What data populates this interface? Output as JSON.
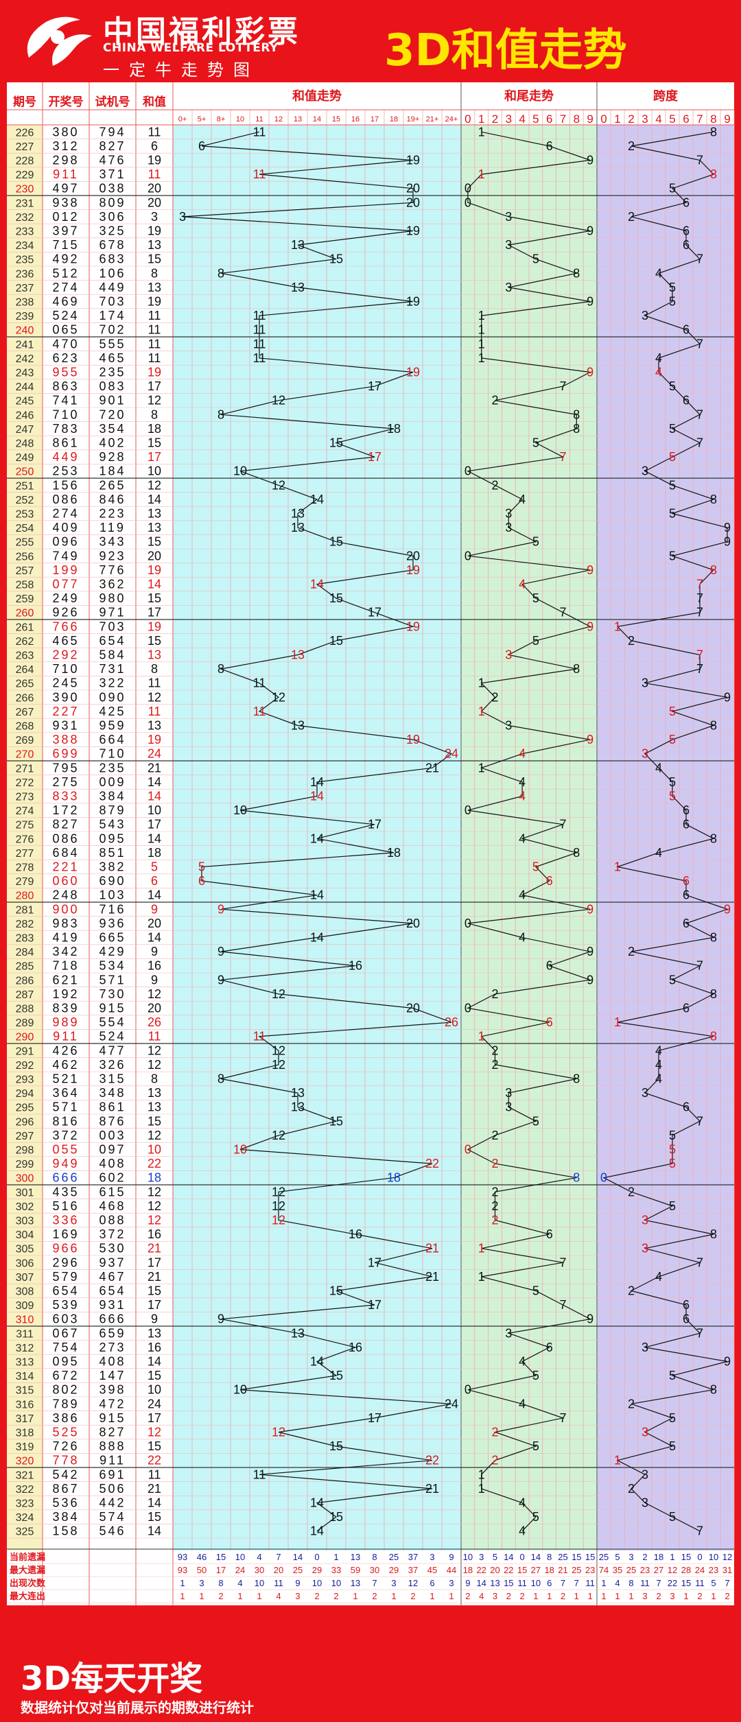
{
  "header": {
    "logo_cn": "中国福利彩票",
    "logo_en": "CHINA WELFARE LOTTERY",
    "slogan": "一定牛走势图",
    "title": "3D和值走势"
  },
  "columns": {
    "period": "期号",
    "draw": "开奖号",
    "test": "试机号",
    "sum": "和值",
    "sum_trend": "和值走势",
    "tail_trend": "和尾走势",
    "span": "跨度"
  },
  "sum_ticks": [
    "0+",
    "5+",
    "8+",
    "10",
    "11",
    "12",
    "13",
    "14",
    "15",
    "16",
    "17",
    "18",
    "19+",
    "21+",
    "24+"
  ],
  "tail_ticks": [
    "0",
    "1",
    "2",
    "3",
    "4",
    "5",
    "6",
    "7",
    "8",
    "9"
  ],
  "span_ticks": [
    "0",
    "1",
    "2",
    "3",
    "4",
    "5",
    "6",
    "7",
    "8",
    "9"
  ],
  "colors": {
    "background": "#e8141a",
    "title": "#ffe600",
    "sum_zone": "#c6f6f8",
    "tail_zone": "#d2f2d6",
    "span_zone": "#cfc9f2",
    "period_zone": "#f8f1c2",
    "red_text": "#e0161b",
    "blue_text": "#1a3cc8",
    "line": "#111111"
  },
  "chart_data": {
    "type": "line",
    "title": "3D和值走势",
    "rows": [
      {
        "p": "226",
        "d": "380",
        "t": "794",
        "s": 11
      },
      {
        "p": "227",
        "d": "312",
        "t": "827",
        "s": 6
      },
      {
        "p": "228",
        "d": "298",
        "t": "476",
        "s": 19
      },
      {
        "p": "229",
        "d": "911",
        "t": "371",
        "s": 11
      },
      {
        "p": "230",
        "d": "497",
        "t": "038",
        "s": 20
      },
      {
        "p": "231",
        "d": "938",
        "t": "809",
        "s": 20
      },
      {
        "p": "232",
        "d": "012",
        "t": "306",
        "s": 3
      },
      {
        "p": "233",
        "d": "397",
        "t": "325",
        "s": 19
      },
      {
        "p": "234",
        "d": "715",
        "t": "678",
        "s": 13
      },
      {
        "p": "235",
        "d": "492",
        "t": "683",
        "s": 15
      },
      {
        "p": "236",
        "d": "512",
        "t": "106",
        "s": 8
      },
      {
        "p": "237",
        "d": "274",
        "t": "449",
        "s": 13
      },
      {
        "p": "238",
        "d": "469",
        "t": "703",
        "s": 19
      },
      {
        "p": "239",
        "d": "524",
        "t": "174",
        "s": 11
      },
      {
        "p": "240",
        "d": "065",
        "t": "702",
        "s": 11
      },
      {
        "p": "241",
        "d": "470",
        "t": "555",
        "s": 11
      },
      {
        "p": "242",
        "d": "623",
        "t": "465",
        "s": 11
      },
      {
        "p": "243",
        "d": "955",
        "t": "235",
        "s": 19
      },
      {
        "p": "244",
        "d": "863",
        "t": "083",
        "s": 17
      },
      {
        "p": "245",
        "d": "741",
        "t": "901",
        "s": 12
      },
      {
        "p": "246",
        "d": "710",
        "t": "720",
        "s": 8
      },
      {
        "p": "247",
        "d": "783",
        "t": "354",
        "s": 18
      },
      {
        "p": "248",
        "d": "861",
        "t": "402",
        "s": 15
      },
      {
        "p": "249",
        "d": "449",
        "t": "928",
        "s": 17
      },
      {
        "p": "250",
        "d": "253",
        "t": "184",
        "s": 10
      },
      {
        "p": "251",
        "d": "156",
        "t": "265",
        "s": 12
      },
      {
        "p": "252",
        "d": "086",
        "t": "846",
        "s": 14
      },
      {
        "p": "253",
        "d": "274",
        "t": "223",
        "s": 13
      },
      {
        "p": "254",
        "d": "409",
        "t": "119",
        "s": 13
      },
      {
        "p": "255",
        "d": "096",
        "t": "343",
        "s": 15
      },
      {
        "p": "256",
        "d": "749",
        "t": "923",
        "s": 20
      },
      {
        "p": "257",
        "d": "199",
        "t": "776",
        "s": 19
      },
      {
        "p": "258",
        "d": "077",
        "t": "362",
        "s": 14
      },
      {
        "p": "259",
        "d": "249",
        "t": "980",
        "s": 15
      },
      {
        "p": "260",
        "d": "926",
        "t": "971",
        "s": 17
      },
      {
        "p": "261",
        "d": "766",
        "t": "703",
        "s": 19
      },
      {
        "p": "262",
        "d": "465",
        "t": "654",
        "s": 15
      },
      {
        "p": "263",
        "d": "292",
        "t": "584",
        "s": 13
      },
      {
        "p": "264",
        "d": "710",
        "t": "731",
        "s": 8
      },
      {
        "p": "265",
        "d": "245",
        "t": "322",
        "s": 11
      },
      {
        "p": "266",
        "d": "390",
        "t": "090",
        "s": 12
      },
      {
        "p": "267",
        "d": "227",
        "t": "425",
        "s": 11
      },
      {
        "p": "268",
        "d": "931",
        "t": "959",
        "s": 13
      },
      {
        "p": "269",
        "d": "388",
        "t": "664",
        "s": 19
      },
      {
        "p": "270",
        "d": "699",
        "t": "710",
        "s": 24
      },
      {
        "p": "271",
        "d": "795",
        "t": "235",
        "s": 21
      },
      {
        "p": "272",
        "d": "275",
        "t": "009",
        "s": 14
      },
      {
        "p": "273",
        "d": "833",
        "t": "384",
        "s": 14
      },
      {
        "p": "274",
        "d": "172",
        "t": "879",
        "s": 10
      },
      {
        "p": "275",
        "d": "827",
        "t": "543",
        "s": 17
      },
      {
        "p": "276",
        "d": "086",
        "t": "095",
        "s": 14
      },
      {
        "p": "277",
        "d": "684",
        "t": "851",
        "s": 18
      },
      {
        "p": "278",
        "d": "221",
        "t": "382",
        "s": 5
      },
      {
        "p": "279",
        "d": "060",
        "t": "690",
        "s": 6
      },
      {
        "p": "280",
        "d": "248",
        "t": "103",
        "s": 14
      },
      {
        "p": "281",
        "d": "900",
        "t": "716",
        "s": 9
      },
      {
        "p": "282",
        "d": "983",
        "t": "936",
        "s": 20
      },
      {
        "p": "283",
        "d": "419",
        "t": "665",
        "s": 14
      },
      {
        "p": "284",
        "d": "342",
        "t": "429",
        "s": 9
      },
      {
        "p": "285",
        "d": "718",
        "t": "534",
        "s": 16
      },
      {
        "p": "286",
        "d": "621",
        "t": "571",
        "s": 9
      },
      {
        "p": "287",
        "d": "192",
        "t": "730",
        "s": 12
      },
      {
        "p": "288",
        "d": "839",
        "t": "915",
        "s": 20
      },
      {
        "p": "289",
        "d": "989",
        "t": "554",
        "s": 26
      },
      {
        "p": "290",
        "d": "911",
        "t": "524",
        "s": 11
      },
      {
        "p": "291",
        "d": "426",
        "t": "477",
        "s": 12
      },
      {
        "p": "292",
        "d": "462",
        "t": "326",
        "s": 12
      },
      {
        "p": "293",
        "d": "521",
        "t": "315",
        "s": 8
      },
      {
        "p": "294",
        "d": "364",
        "t": "348",
        "s": 13
      },
      {
        "p": "295",
        "d": "571",
        "t": "861",
        "s": 13
      },
      {
        "p": "296",
        "d": "816",
        "t": "876",
        "s": 15
      },
      {
        "p": "297",
        "d": "372",
        "t": "003",
        "s": 12
      },
      {
        "p": "298",
        "d": "055",
        "t": "097",
        "s": 10
      },
      {
        "p": "299",
        "d": "949",
        "t": "408",
        "s": 22
      },
      {
        "p": "300",
        "d": "666",
        "t": "602",
        "s": 18
      },
      {
        "p": "301",
        "d": "435",
        "t": "615",
        "s": 12
      },
      {
        "p": "302",
        "d": "516",
        "t": "468",
        "s": 12
      },
      {
        "p": "303",
        "d": "336",
        "t": "088",
        "s": 12
      },
      {
        "p": "304",
        "d": "169",
        "t": "372",
        "s": 16
      },
      {
        "p": "305",
        "d": "966",
        "t": "530",
        "s": 21
      },
      {
        "p": "306",
        "d": "296",
        "t": "937",
        "s": 17
      },
      {
        "p": "307",
        "d": "579",
        "t": "467",
        "s": 21
      },
      {
        "p": "308",
        "d": "654",
        "t": "654",
        "s": 15
      },
      {
        "p": "309",
        "d": "539",
        "t": "931",
        "s": 17
      },
      {
        "p": "310",
        "d": "603",
        "t": "666",
        "s": 9
      },
      {
        "p": "311",
        "d": "067",
        "t": "659",
        "s": 13
      },
      {
        "p": "312",
        "d": "754",
        "t": "273",
        "s": 16
      },
      {
        "p": "313",
        "d": "095",
        "t": "408",
        "s": 14
      },
      {
        "p": "314",
        "d": "672",
        "t": "147",
        "s": 15
      },
      {
        "p": "315",
        "d": "802",
        "t": "398",
        "s": 10
      },
      {
        "p": "316",
        "d": "789",
        "t": "472",
        "s": 24
      },
      {
        "p": "317",
        "d": "386",
        "t": "915",
        "s": 17
      },
      {
        "p": "318",
        "d": "525",
        "t": "827",
        "s": 12
      },
      {
        "p": "319",
        "d": "726",
        "t": "888",
        "s": 15
      },
      {
        "p": "320",
        "d": "778",
        "t": "911",
        "s": 22
      },
      {
        "p": "321",
        "d": "542",
        "t": "691",
        "s": 11
      },
      {
        "p": "322",
        "d": "867",
        "t": "506",
        "s": 21
      },
      {
        "p": "323",
        "d": "536",
        "t": "442",
        "s": 14
      },
      {
        "p": "324",
        "d": "384",
        "t": "574",
        "s": 15
      },
      {
        "p": "325",
        "d": "158",
        "t": "546",
        "s": 14
      }
    ],
    "stat_labels": [
      "当前遗漏",
      "最大遗漏",
      "出现次数",
      "最大连出"
    ],
    "stats_sum": [
      [
        "93",
        "46",
        "15",
        "10",
        "4",
        "7",
        "14",
        "0",
        "1",
        "13",
        "8",
        "25",
        "37",
        "3",
        "9"
      ],
      [
        "93",
        "50",
        "17",
        "24",
        "30",
        "20",
        "25",
        "29",
        "33",
        "59",
        "30",
        "29",
        "37",
        "45",
        "44"
      ],
      [
        "1",
        "3",
        "8",
        "4",
        "10",
        "11",
        "9",
        "10",
        "10",
        "13",
        "7",
        "3",
        "12",
        "6",
        "3"
      ],
      [
        "1",
        "1",
        "2",
        "1",
        "1",
        "4",
        "3",
        "2",
        "2",
        "1",
        "2",
        "1",
        "2",
        "1",
        "1"
      ]
    ],
    "stats_tail": [
      [
        "10",
        "3",
        "5",
        "14",
        "0",
        "14",
        "8",
        "25",
        "15",
        "15"
      ],
      [
        "18",
        "22",
        "20",
        "22",
        "15",
        "27",
        "18",
        "21",
        "25",
        "23"
      ],
      [
        "9",
        "14",
        "13",
        "15",
        "11",
        "10",
        "6",
        "7",
        "7",
        "11"
      ],
      [
        "2",
        "4",
        "3",
        "2",
        "2",
        "1",
        "1",
        "2",
        "1",
        "1"
      ]
    ],
    "stats_span": [
      [
        "25",
        "5",
        "3",
        "2",
        "18",
        "1",
        "15",
        "0",
        "10",
        "12"
      ],
      [
        "74",
        "35",
        "25",
        "23",
        "27",
        "12",
        "28",
        "24",
        "23",
        "31"
      ],
      [
        "1",
        "4",
        "8",
        "11",
        "7",
        "22",
        "15",
        "11",
        "5",
        "7"
      ],
      [
        "1",
        "1",
        "1",
        "3",
        "2",
        "3",
        "1",
        "2",
        "1",
        "2"
      ]
    ]
  },
  "footer": {
    "title": "3D每天开奖",
    "note": "数据统计仅对当前展示的期数进行统计"
  }
}
